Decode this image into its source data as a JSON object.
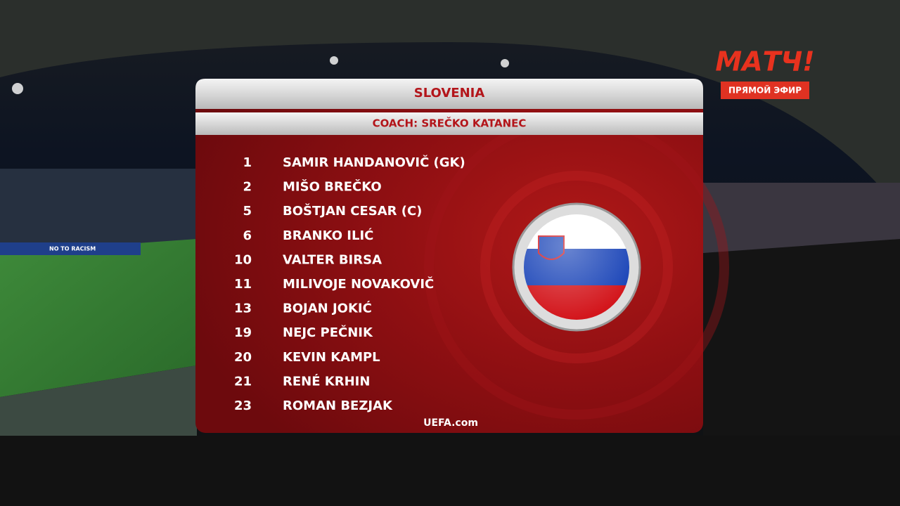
{
  "broadcast": {
    "channel_logo": "МАТЧ!",
    "live_label": "ПРЯМОЙ ЭФИР",
    "banner_text": "NO TO RACISM"
  },
  "lineup": {
    "team": "SLOVENIA",
    "coach": "COACH: SREČKO KATANEC",
    "players": [
      {
        "number": "1",
        "name": "SAMIR HANDANOVIČ (GK)"
      },
      {
        "number": "2",
        "name": "MIŠO BREČKO"
      },
      {
        "number": "5",
        "name": "BOŠTJAN CESAR (C)"
      },
      {
        "number": "6",
        "name": "BRANKO ILIĆ"
      },
      {
        "number": "10",
        "name": "VALTER BIRSA"
      },
      {
        "number": "11",
        "name": "MILIVOJE NOVAKOVIČ"
      },
      {
        "number": "13",
        "name": "BOJAN JOKIĆ"
      },
      {
        "number": "19",
        "name": "NEJC PEČNIK"
      },
      {
        "number": "20",
        "name": "KEVIN KAMPL"
      },
      {
        "number": "21",
        "name": "RENÉ KRHIN"
      },
      {
        "number": "23",
        "name": "ROMAN BEZJAK"
      }
    ],
    "source": "UEFA.com"
  }
}
